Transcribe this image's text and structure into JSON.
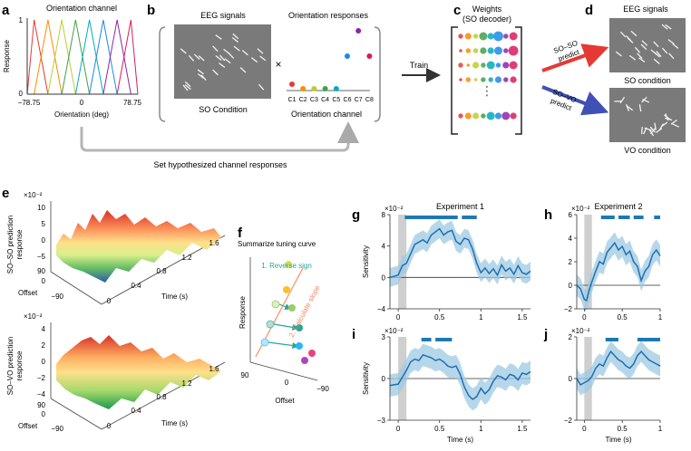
{
  "panel_labels": {
    "a": "a",
    "b": "b",
    "c": "c",
    "d": "d",
    "e": "e",
    "f": "f",
    "g": "g",
    "h": "h",
    "i": "i",
    "j": "j"
  },
  "panel_a": {
    "title": "Orientation channel",
    "ylabel": "Response",
    "xlabel": "Orientation (deg)",
    "xticks": [
      "−78.75",
      "0",
      "78.75"
    ],
    "yticks": [
      "1",
      "0"
    ],
    "channel_colors": [
      "#e53935",
      "#fb8c00",
      "#c0ca33",
      "#43a047",
      "#00acc1",
      "#1e88e5",
      "#8e24aa",
      "#d81b60"
    ]
  },
  "panel_b": {
    "eeg_title": "EEG signals",
    "eeg_caption": "SO Condition",
    "times_sign": "×",
    "resp_title": "Orientation responses",
    "resp_xlabel": "Orientation channel",
    "channels": [
      "C1",
      "C2",
      "C3",
      "C4",
      "C5",
      "C6",
      "C7",
      "C8"
    ],
    "arrow_label": "Set hypothesized channel responses"
  },
  "panel_c": {
    "title_line1": "Weights",
    "title_line2": "(SO decoder)",
    "train_label": "Train",
    "ellipsis": "⋮"
  },
  "panel_d": {
    "title": "EEG signals",
    "so_predict_1": "SO–SO",
    "so_predict_2": "predict",
    "vo_predict_1": "SO–VO",
    "vo_predict_2": "predict",
    "so_caption": "SO condition",
    "vo_caption": "VO condition"
  },
  "panel_e": {
    "top_exp": "×10⁻²",
    "top_ylabel_1": "SO–SO prediction",
    "top_ylabel_2": "response",
    "top_zticks": [
      "10",
      "5",
      "0",
      "−5"
    ],
    "bottom_exp": "×10⁻²",
    "bottom_ylabel_1": "SO–VO prediction",
    "bottom_ylabel_2": "response",
    "bottom_zticks": [
      "4",
      "2",
      "0",
      "−2",
      "−4"
    ],
    "offset_label": "Offset",
    "offset_ticks": [
      "90",
      "0",
      "−90"
    ],
    "time_label": "Time (s)",
    "time_ticks": [
      "0",
      "0.4",
      "0.8",
      "1.2",
      "1.6"
    ]
  },
  "panel_f": {
    "title": "Summarize tuning curve",
    "step1": "1. Reverse sign",
    "step2": "2. Calculate slope",
    "ylabel": "Response",
    "xlabel": "Offset",
    "xticks": [
      "90",
      "0",
      "−90"
    ]
  },
  "chart_data": [
    {
      "type": "line",
      "panel": "g",
      "title": "Experiment 1",
      "xlabel": "",
      "ylabel": "Sensitivity",
      "y_exponent": "×10⁻²",
      "xlim": [
        -0.1,
        1.6
      ],
      "ylim": [
        -4,
        8
      ],
      "xtick_labels": [
        "0",
        "0.5",
        "1",
        "1.5"
      ],
      "ytick_labels": [
        "8",
        "4",
        "0",
        "−4"
      ],
      "x": [
        -0.1,
        0,
        0.05,
        0.1,
        0.15,
        0.2,
        0.25,
        0.3,
        0.35,
        0.4,
        0.45,
        0.5,
        0.55,
        0.6,
        0.65,
        0.7,
        0.75,
        0.8,
        0.85,
        0.9,
        0.95,
        1.0,
        1.05,
        1.1,
        1.15,
        1.2,
        1.25,
        1.3,
        1.35,
        1.4,
        1.45,
        1.5,
        1.55,
        1.6
      ],
      "series": [
        {
          "name": "mean",
          "values": [
            0,
            0.3,
            1.5,
            1.8,
            3,
            4.2,
            4.5,
            4.8,
            4.4,
            5.4,
            5.8,
            6.2,
            5.4,
            5.8,
            6,
            4.6,
            4.2,
            5,
            4.8,
            3.6,
            1.8,
            0.6,
            1.2,
            0.5,
            1.1,
            0.3,
            1.6,
            0.8,
            1.2,
            0.4,
            1.5,
            0.6,
            0.4,
            0.8
          ]
        }
      ],
      "ci_halfwidth": 1.2,
      "significant_ranges": [
        [
          0.08,
          0.72
        ],
        [
          0.77,
          0.95
        ]
      ]
    },
    {
      "type": "line",
      "panel": "h",
      "title": "Experiment 2",
      "xlabel": "",
      "ylabel": "",
      "y_exponent": "×10⁻²",
      "xlim": [
        -0.1,
        1.0
      ],
      "ylim": [
        -2,
        6
      ],
      "xtick_labels": [
        "0",
        "0.5",
        "1"
      ],
      "ytick_labels": [
        "6",
        "4",
        "2",
        "0",
        "−2"
      ],
      "x": [
        -0.1,
        -0.05,
        0,
        0.03,
        0.06,
        0.1,
        0.15,
        0.2,
        0.25,
        0.3,
        0.35,
        0.4,
        0.45,
        0.5,
        0.55,
        0.6,
        0.65,
        0.7,
        0.75,
        0.8,
        0.85,
        0.9,
        0.95,
        1.0
      ],
      "series": [
        {
          "name": "mean",
          "values": [
            0,
            -0.3,
            -1.2,
            -1.3,
            -0.5,
            0.3,
            1.2,
            2,
            1.8,
            2.8,
            3.2,
            3.6,
            3,
            3.3,
            2.6,
            2.9,
            2,
            1.6,
            0.4,
            1.2,
            1.6,
            2.6,
            3,
            2.5
          ]
        }
      ],
      "ci_halfwidth": 0.9,
      "significant_ranges": [
        [
          0.22,
          0.4
        ],
        [
          0.45,
          0.6
        ],
        [
          0.65,
          0.78
        ],
        [
          0.92,
          1.0
        ]
      ]
    },
    {
      "type": "line",
      "panel": "i",
      "title": "",
      "xlabel": "Time (s)",
      "ylabel": "Sensitivity",
      "y_exponent": "×10⁻²",
      "xlim": [
        -0.1,
        1.6
      ],
      "ylim": [
        -3,
        3
      ],
      "xtick_labels": [
        "0",
        "0.5",
        "1",
        "1.5"
      ],
      "ytick_labels": [
        "3",
        "0",
        "−3"
      ],
      "x": [
        -0.1,
        0,
        0.05,
        0.1,
        0.15,
        0.2,
        0.25,
        0.3,
        0.35,
        0.4,
        0.45,
        0.5,
        0.55,
        0.6,
        0.65,
        0.7,
        0.75,
        0.8,
        0.85,
        0.9,
        0.95,
        1.0,
        1.05,
        1.1,
        1.15,
        1.2,
        1.25,
        1.3,
        1.35,
        1.4,
        1.45,
        1.5,
        1.55,
        1.6
      ],
      "series": [
        {
          "name": "mean",
          "values": [
            -0.5,
            -0.4,
            0.1,
            0.6,
            1.2,
            1.4,
            1.3,
            1.7,
            1.6,
            1.5,
            1.3,
            1.4,
            1.2,
            0.9,
            0.8,
            0.9,
            0.3,
            -0.6,
            -1.2,
            -1.5,
            -1.3,
            -0.7,
            -1.1,
            -0.8,
            -0.2,
            0.2,
            0.1,
            -0.1,
            0.3,
            0.2,
            -0.1,
            0.4,
            0.3,
            0.5
          ]
        }
      ],
      "ci_halfwidth": 0.8,
      "significant_ranges": [
        [
          0.28,
          0.4
        ],
        [
          0.45,
          0.65
        ]
      ]
    },
    {
      "type": "line",
      "panel": "j",
      "title": "",
      "xlabel": "Time (s)",
      "ylabel": "",
      "y_exponent": "×10⁻²",
      "xlim": [
        -0.1,
        1.0
      ],
      "ylim": [
        -2,
        2
      ],
      "xtick_labels": [
        "0",
        "0.5",
        "1"
      ],
      "ytick_labels": [
        "2",
        "0",
        "−2"
      ],
      "x": [
        -0.1,
        -0.05,
        0,
        0.05,
        0.1,
        0.15,
        0.2,
        0.25,
        0.3,
        0.35,
        0.4,
        0.45,
        0.5,
        0.55,
        0.6,
        0.65,
        0.7,
        0.75,
        0.8,
        0.85,
        0.9,
        0.95,
        1.0
      ],
      "series": [
        {
          "name": "mean",
          "values": [
            0,
            -0.3,
            -0.2,
            -0.1,
            0.1,
            0.5,
            0.7,
            0.6,
            1,
            1.3,
            1.1,
            0.9,
            0.8,
            0.6,
            0.5,
            0.7,
            1.1,
            1.3,
            1.1,
            0.9,
            0.8,
            0.7,
            0.6
          ]
        }
      ],
      "ci_halfwidth": 0.5,
      "significant_ranges": [
        [
          0.28,
          0.45
        ],
        [
          0.7,
          1.0
        ]
      ]
    }
  ]
}
